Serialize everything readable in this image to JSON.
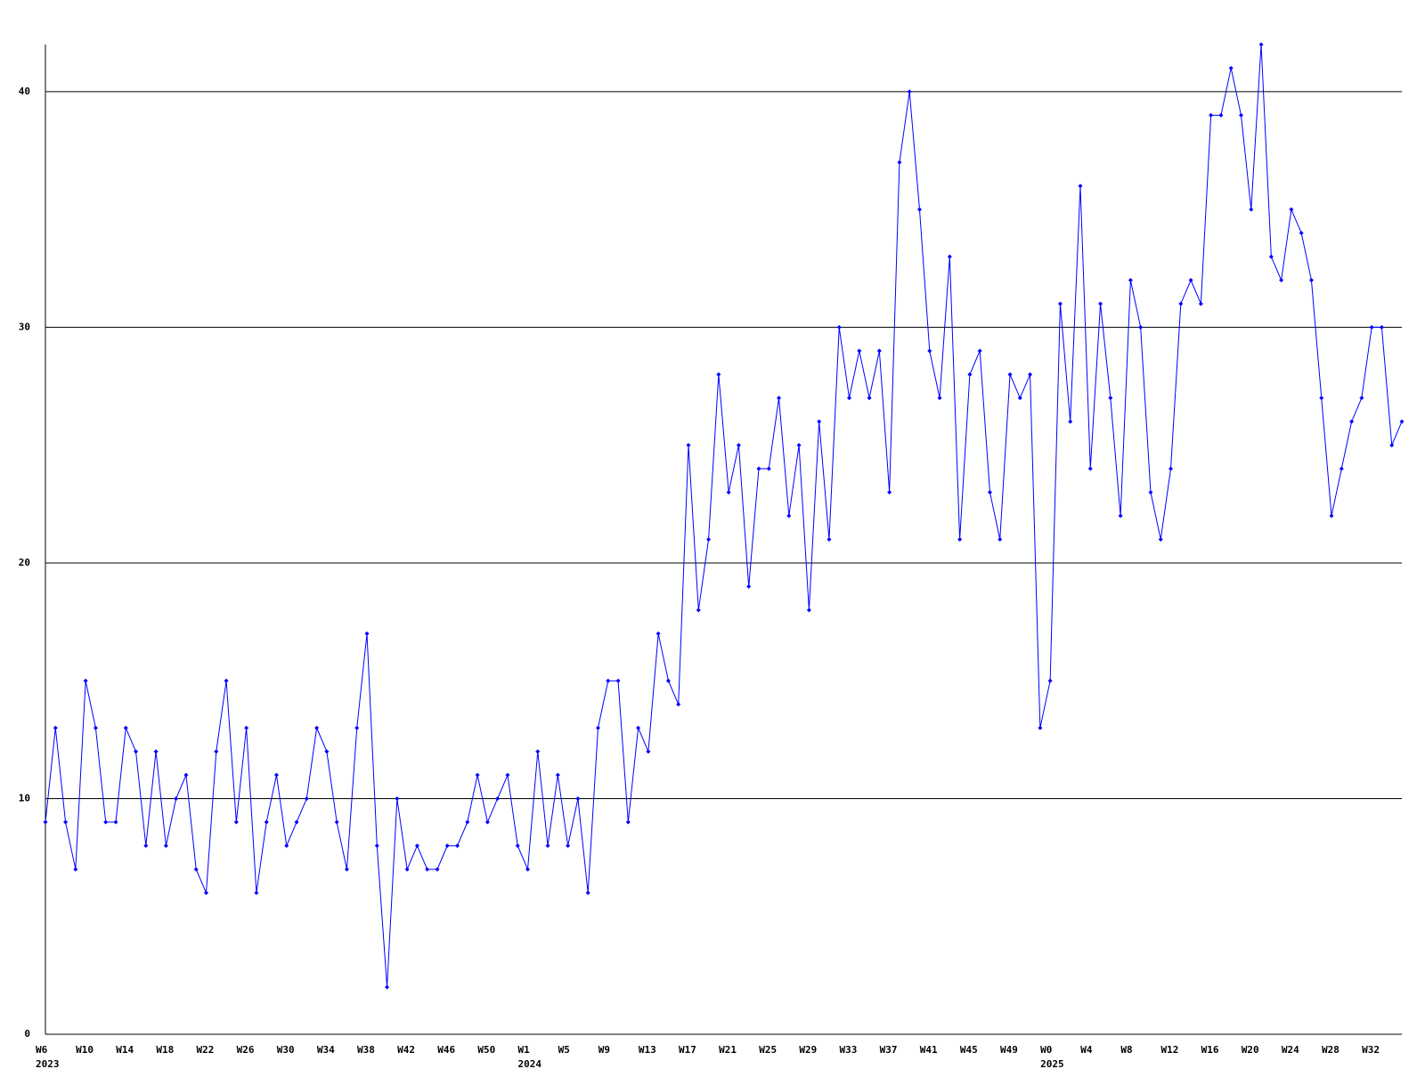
{
  "chart_data": {
    "type": "line",
    "categories": [
      "W6",
      null,
      null,
      null,
      "W10",
      null,
      null,
      null,
      "W14",
      null,
      null,
      null,
      "W18",
      null,
      null,
      null,
      "W22",
      null,
      null,
      null,
      "W26",
      null,
      null,
      null,
      "W30",
      null,
      null,
      null,
      "W34",
      null,
      null,
      null,
      "W38",
      null,
      null,
      null,
      "W42",
      null,
      null,
      null,
      "W46",
      null,
      null,
      null,
      "W50",
      null,
      null,
      null,
      "W1",
      null,
      null,
      null,
      "W5",
      null,
      null,
      null,
      "W9",
      null,
      null,
      null,
      "W13",
      null,
      null,
      null,
      "W17",
      null,
      null,
      null,
      "W21",
      null,
      null,
      null,
      "W25",
      null,
      null,
      null,
      "W29",
      null,
      null,
      null,
      "W33",
      null,
      null,
      null,
      "W37",
      null,
      null,
      null,
      "W41",
      null,
      null,
      null,
      "W45",
      null,
      null,
      null,
      "W49",
      null,
      null,
      null,
      "W0",
      null,
      null,
      null,
      "W4",
      null,
      null,
      null,
      "W8",
      null,
      null,
      null,
      "W12",
      null,
      null,
      null,
      "W16",
      null,
      null,
      null,
      "W20",
      null,
      null,
      null,
      "W24",
      null,
      null,
      null,
      "W28",
      null,
      null,
      null,
      "W32",
      null,
      null,
      null
    ],
    "category_groups": [
      "2023",
      null,
      null,
      null,
      null,
      null,
      null,
      null,
      null,
      null,
      null,
      null,
      null,
      null,
      null,
      null,
      null,
      null,
      null,
      null,
      null,
      null,
      null,
      null,
      null,
      null,
      null,
      null,
      null,
      null,
      null,
      null,
      null,
      null,
      null,
      null,
      null,
      null,
      null,
      null,
      null,
      null,
      null,
      null,
      null,
      null,
      null,
      null,
      "2024",
      null,
      null,
      null,
      null,
      null,
      null,
      null,
      null,
      null,
      null,
      null,
      null,
      null,
      null,
      null,
      null,
      null,
      null,
      null,
      null,
      null,
      null,
      null,
      null,
      null,
      null,
      null,
      null,
      null,
      null,
      null,
      null,
      null,
      null,
      null,
      null,
      null,
      null,
      null,
      null,
      null,
      null,
      null,
      null,
      null,
      null,
      null,
      null,
      null,
      null,
      null,
      "2025",
      null,
      null,
      null,
      null,
      null,
      null,
      null,
      null,
      null,
      null,
      null,
      null,
      null,
      null,
      null,
      null,
      null,
      null,
      null,
      null,
      null,
      null,
      null,
      null,
      null,
      null,
      null,
      null,
      null,
      null,
      null,
      null,
      null,
      null,
      null
    ],
    "series": [
      {
        "color": "#0000ff",
        "values": [
          9,
          13,
          9,
          7,
          15,
          13,
          9,
          9,
          13,
          12,
          8,
          12,
          8,
          10,
          11,
          7,
          6,
          12,
          15,
          9,
          13,
          6,
          9,
          11,
          8,
          9,
          10,
          13,
          12,
          9,
          7,
          13,
          17,
          8,
          2,
          10,
          7,
          8,
          7,
          7,
          8,
          8,
          9,
          11,
          9,
          10,
          11,
          8,
          7,
          12,
          8,
          11,
          8,
          10,
          6,
          13,
          15,
          15,
          9,
          13,
          12,
          17,
          15,
          14,
          25,
          18,
          21,
          28,
          23,
          25,
          19,
          24,
          24,
          27,
          22,
          25,
          18,
          26,
          21,
          30,
          27,
          29,
          27,
          29,
          23,
          37,
          40,
          35,
          29,
          27,
          33,
          21,
          28,
          29,
          23,
          21,
          28,
          27,
          28,
          13,
          15,
          31,
          26,
          36,
          24,
          31,
          27,
          22,
          32,
          30,
          23,
          21,
          24,
          31,
          32,
          31,
          39,
          39,
          41,
          39,
          35,
          42,
          33,
          32,
          35,
          34,
          32,
          27,
          22,
          24,
          26,
          27,
          30,
          30,
          25,
          26
        ]
      }
    ],
    "ylim": [
      0,
      42
    ],
    "yticks": [
      0,
      10,
      20,
      30,
      40
    ],
    "grid": true
  }
}
